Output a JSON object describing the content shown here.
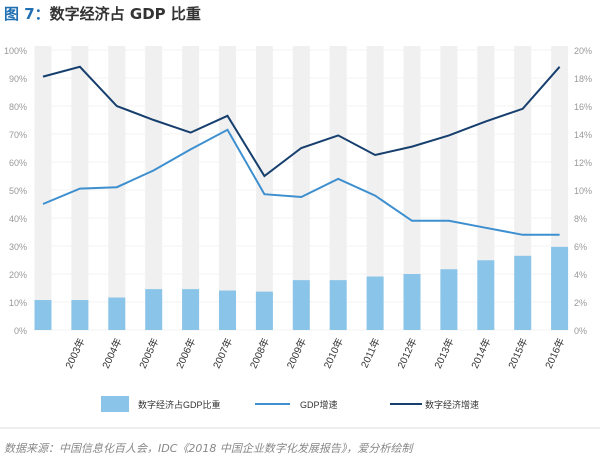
{
  "title_prefix": "图 7：",
  "title_text": "数字经济占 GDP 比重",
  "source": "数据来源：中国信息化百人会，IDC《2018 中国企业数字化发展报告》，爱分析绘制",
  "chart_data": {
    "type": "bar",
    "title": "数字经济占 GDP 比重",
    "categories": [
      "",
      "2003年",
      "2004年",
      "2005年",
      "2006年",
      "2007年",
      "2008年",
      "2009年",
      "2010年",
      "2011年",
      "2012年",
      "2013年",
      "2014年",
      "2015年",
      "2016年"
    ],
    "series": [
      {
        "name": "数字经济占GDP比重",
        "type": "bar",
        "axis": "left",
        "color": "#8ac4e8",
        "values": [
          10.7,
          10.7,
          11.6,
          14.6,
          14.6,
          14.1,
          13.7,
          17.8,
          17.8,
          19.1,
          20.0,
          21.7,
          24.9,
          26.5,
          29.7
        ]
      },
      {
        "name": "GDP增速",
        "type": "line",
        "axis": "right",
        "color": "#3d8fcf",
        "values": [
          9.0,
          10.1,
          10.2,
          11.4,
          12.9,
          14.3,
          9.7,
          9.5,
          10.8,
          9.6,
          7.8,
          7.8,
          7.3,
          6.8,
          6.8
        ]
      },
      {
        "name": "数字经济增速",
        "type": "line",
        "axis": "right",
        "color": "#163f6e",
        "values": [
          18.1,
          18.8,
          16.0,
          15.0,
          14.1,
          15.3,
          11.0,
          13.0,
          13.9,
          12.5,
          13.1,
          13.9,
          14.9,
          15.8,
          18.8
        ]
      }
    ],
    "background_bar_color": "#f0f0f0",
    "ylim_left": [
      0,
      100
    ],
    "ylim_right": [
      0,
      20
    ],
    "yticks_left": [
      "0%",
      "10%",
      "20%",
      "30%",
      "40%",
      "50%",
      "60%",
      "70%",
      "80%",
      "90%",
      "100%"
    ],
    "yticks_right": [
      "0%",
      "2%",
      "4%",
      "6%",
      "8%",
      "10%",
      "12%",
      "14%",
      "16%",
      "18%",
      "20%"
    ],
    "grid": true,
    "legend_position": "bottom"
  }
}
